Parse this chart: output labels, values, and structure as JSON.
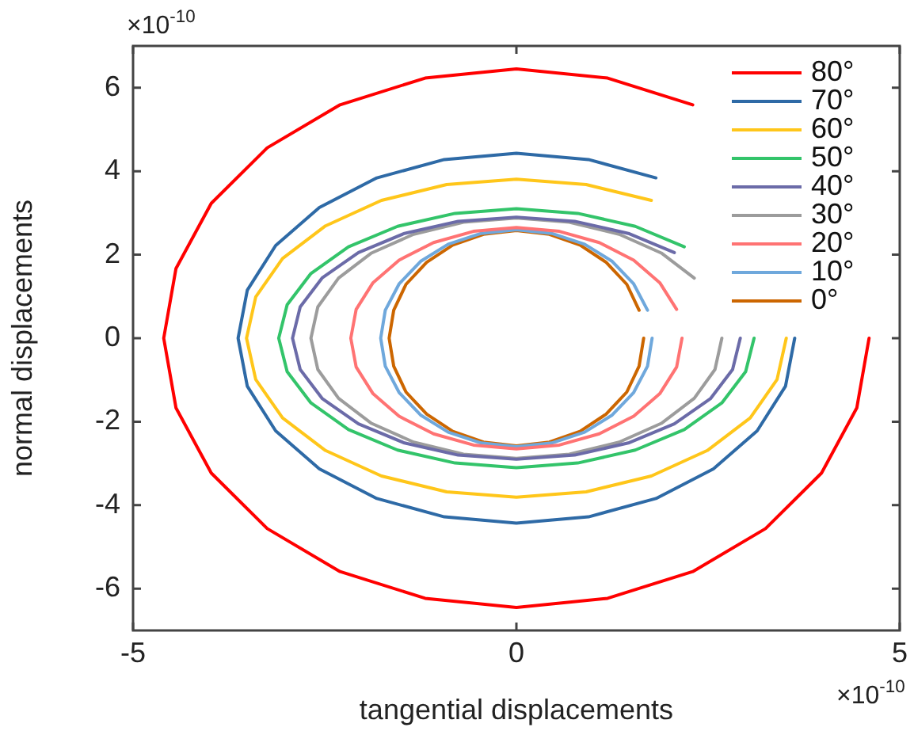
{
  "chart_data": {
    "type": "line",
    "xlabel": "tangential displacements",
    "ylabel": "normal displacements",
    "annotations": [
      "×10$^{-10}$",
      "×10$^{-10}$"
    ],
    "xlim": [
      -5,
      5
    ],
    "xticks": [
      -5,
      0,
      5
    ],
    "ylim": [
      -7,
      7
    ],
    "yticks": [
      -6,
      -4,
      -2,
      0,
      2,
      4,
      6
    ],
    "legend": "top right",
    "marker": "none",
    "line_style": "solid",
    "series": [
      {
        "name": "80°",
        "color": "#ff0000",
        "x": [
          4.6,
          4.44,
          3.98,
          3.25,
          2.3,
          1.19,
          0,
          -1.19,
          -2.3,
          -3.25,
          -3.98,
          -4.44,
          -4.6,
          -4.44,
          -3.98,
          -3.25,
          -2.3,
          -1.19,
          0,
          1.19,
          2.3
        ],
        "values": [
          0,
          -1.67,
          -3.23,
          -4.56,
          -5.59,
          -6.23,
          -6.45,
          -6.23,
          -5.59,
          -4.56,
          -3.23,
          -1.67,
          0,
          1.67,
          3.23,
          4.56,
          5.59,
          6.23,
          6.45,
          6.23,
          5.59
        ]
      },
      {
        "name": "70°",
        "color": "#2e6aa6",
        "x": [
          3.63,
          3.51,
          3.14,
          2.57,
          1.82,
          0.94,
          0,
          -0.94,
          -1.82,
          -2.57,
          -3.14,
          -3.51,
          -3.63,
          -3.51,
          -3.14,
          -2.57,
          -1.82,
          -0.94,
          0,
          0.94,
          1.82
        ],
        "values": [
          0,
          -1.15,
          -2.22,
          -3.13,
          -3.84,
          -4.28,
          -4.43,
          -4.28,
          -3.84,
          -3.13,
          -2.22,
          -1.15,
          0,
          1.15,
          2.22,
          3.13,
          3.84,
          4.28,
          4.43,
          4.28,
          3.84
        ]
      },
      {
        "name": "60°",
        "color": "#ffc61a",
        "x": [
          3.52,
          3.4,
          3.05,
          2.49,
          1.76,
          0.91,
          0,
          -0.91,
          -1.76,
          -2.49,
          -3.05,
          -3.4,
          -3.52,
          -3.4,
          -3.05,
          -2.49,
          -1.76,
          -0.91,
          0,
          0.91,
          1.76
        ],
        "values": [
          0,
          -0.99,
          -1.91,
          -2.69,
          -3.3,
          -3.68,
          -3.81,
          -3.68,
          -3.3,
          -2.69,
          -1.91,
          -0.99,
          0,
          0.99,
          1.91,
          2.69,
          3.3,
          3.68,
          3.81,
          3.68,
          3.3
        ]
      },
      {
        "name": "50°",
        "color": "#33c46a",
        "x": [
          3.1,
          2.99,
          2.68,
          2.19,
          1.55,
          0.8,
          0,
          -0.8,
          -1.55,
          -2.19,
          -2.68,
          -2.99,
          -3.1,
          -2.99,
          -2.68,
          -2.19,
          -1.55,
          -0.8,
          0,
          0.8,
          1.55,
          2.19
        ],
        "values": [
          0,
          -0.8,
          -1.55,
          -2.19,
          -2.68,
          -2.99,
          -3.1,
          -2.99,
          -2.68,
          -2.19,
          -1.55,
          -0.8,
          0,
          0.8,
          1.55,
          2.19,
          2.68,
          2.99,
          3.1,
          2.99,
          2.68,
          2.19
        ]
      },
      {
        "name": "40°",
        "color": "#6b6ba8",
        "x": [
          2.92,
          2.82,
          2.53,
          2.06,
          1.46,
          0.76,
          0,
          -0.76,
          -1.46,
          -2.06,
          -2.53,
          -2.82,
          -2.92,
          -2.82,
          -2.53,
          -2.06,
          -1.46,
          -0.76,
          0,
          0.76,
          1.46,
          2.06
        ],
        "values": [
          0,
          -0.75,
          -1.45,
          -2.05,
          -2.51,
          -2.8,
          -2.9,
          -2.8,
          -2.51,
          -2.05,
          -1.45,
          -0.75,
          0,
          0.75,
          1.45,
          2.05,
          2.51,
          2.8,
          2.9,
          2.8,
          2.51,
          2.05
        ]
      },
      {
        "name": "30°",
        "color": "#9c9c9c",
        "x": [
          2.68,
          2.59,
          2.32,
          1.89,
          1.34,
          0.69,
          0,
          -0.69,
          -1.34,
          -1.89,
          -2.32,
          -2.59,
          -2.68,
          -2.59,
          -2.32,
          -1.89,
          -1.34,
          -0.69,
          0,
          0.69,
          1.34,
          1.89,
          2.32
        ],
        "values": [
          0,
          -0.75,
          -1.44,
          -2.04,
          -2.49,
          -2.78,
          -2.88,
          -2.78,
          -2.49,
          -2.04,
          -1.44,
          -0.75,
          0,
          0.75,
          1.44,
          2.04,
          2.49,
          2.78,
          2.88,
          2.78,
          2.49,
          2.04,
          1.44
        ]
      },
      {
        "name": "20°",
        "color": "#ff7373",
        "x": [
          2.16,
          2.09,
          1.87,
          1.53,
          1.08,
          0.56,
          0,
          -0.56,
          -1.08,
          -1.53,
          -1.87,
          -2.09,
          -2.16,
          -2.09,
          -1.87,
          -1.53,
          -1.08,
          -0.56,
          0,
          0.56,
          1.08,
          1.53,
          1.87,
          2.09
        ],
        "values": [
          0,
          -0.69,
          -1.33,
          -1.87,
          -2.29,
          -2.56,
          -2.65,
          -2.56,
          -2.29,
          -1.87,
          -1.33,
          -0.69,
          0,
          0.69,
          1.33,
          1.87,
          2.29,
          2.56,
          2.65,
          2.56,
          2.29,
          1.87,
          1.33,
          0.69
        ]
      },
      {
        "name": "10°",
        "color": "#6fa8dc",
        "x": [
          1.77,
          1.71,
          1.53,
          1.25,
          0.89,
          0.46,
          0,
          -0.46,
          -0.89,
          -1.25,
          -1.53,
          -1.71,
          -1.77,
          -1.71,
          -1.53,
          -1.25,
          -0.89,
          -0.46,
          0,
          0.46,
          0.89,
          1.25,
          1.53,
          1.71
        ],
        "values": [
          0,
          -0.67,
          -1.3,
          -1.84,
          -2.25,
          -2.51,
          -2.6,
          -2.51,
          -2.25,
          -1.84,
          -1.3,
          -0.67,
          0,
          0.67,
          1.3,
          1.84,
          2.25,
          2.51,
          2.6,
          2.51,
          2.25,
          1.84,
          1.3,
          0.67
        ]
      },
      {
        "name": "0°",
        "color": "#cc6600",
        "x": [
          1.66,
          1.6,
          1.44,
          1.17,
          0.83,
          0.43,
          0,
          -0.43,
          -0.83,
          -1.17,
          -1.44,
          -1.6,
          -1.66,
          -1.6,
          -1.44,
          -1.17,
          -0.83,
          -0.43,
          0,
          0.43,
          0.83,
          1.17,
          1.44,
          1.6
        ],
        "values": [
          0,
          -0.67,
          -1.29,
          -1.82,
          -2.23,
          -2.49,
          -2.58,
          -2.49,
          -2.23,
          -1.82,
          -1.29,
          -0.67,
          0,
          0.67,
          1.29,
          1.82,
          2.23,
          2.49,
          2.58,
          2.49,
          2.23,
          1.82,
          1.29,
          0.67
        ]
      }
    ]
  }
}
